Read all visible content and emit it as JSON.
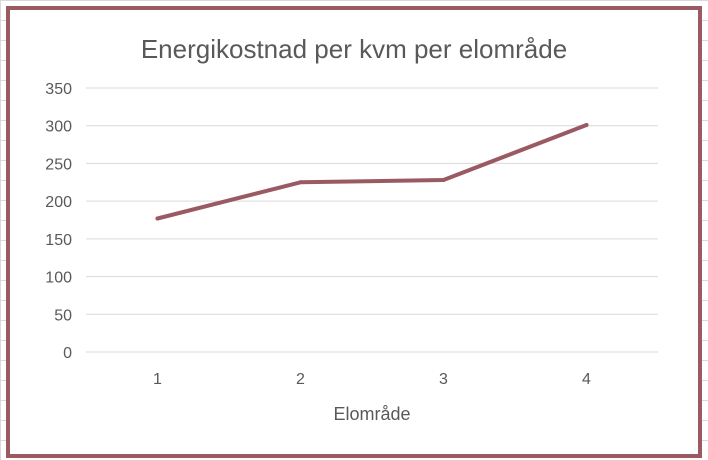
{
  "chart_data": {
    "type": "line",
    "title": "Energikostnad per kvm per elområde",
    "xlabel": "Elområde",
    "ylabel": "",
    "categories": [
      "1",
      "2",
      "3",
      "4"
    ],
    "series": [
      {
        "values": [
          177,
          225,
          228,
          301
        ],
        "color": "#9b5a63"
      }
    ],
    "ylim": [
      0,
      350
    ],
    "yticks": [
      0,
      50,
      100,
      150,
      200,
      250,
      300,
      350
    ],
    "grid": true,
    "legend": "none"
  },
  "colors": {
    "frame": "#9b5a63",
    "gridline": "#d9d9d9",
    "text": "#595959"
  }
}
